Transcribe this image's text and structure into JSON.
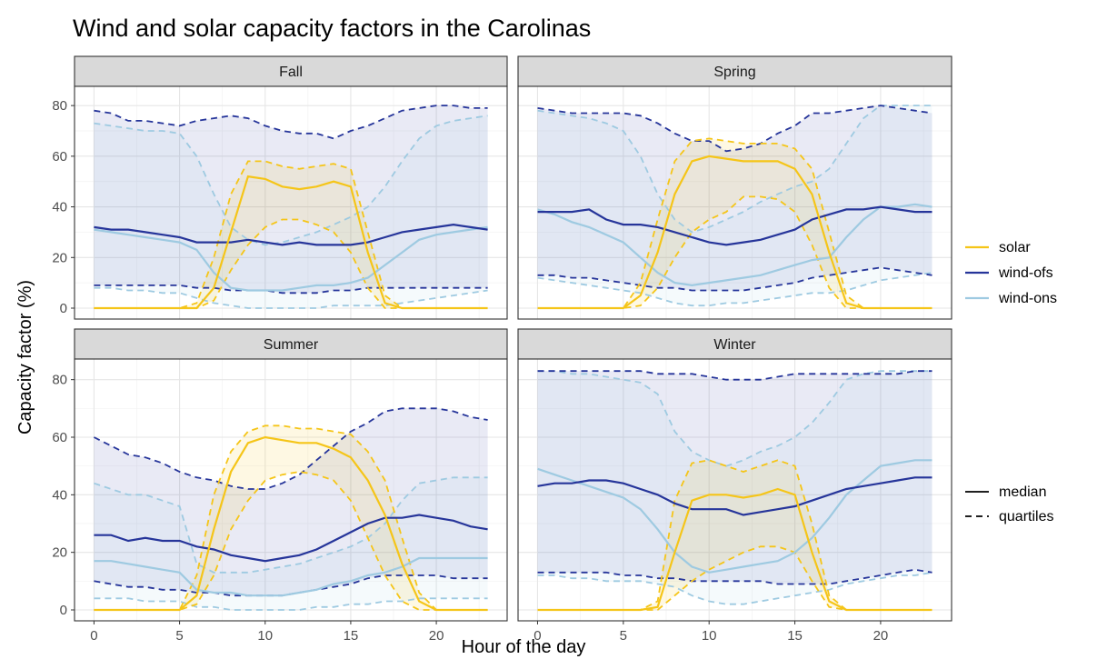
{
  "chart_data": {
    "type": "line",
    "title": "Wind and solar capacity factors in the Carolinas",
    "xlabel": "Hour of the day",
    "ylabel": "Capacity factor (%)",
    "xlim": [
      0,
      23
    ],
    "ylim": [
      0,
      84
    ],
    "x_ticks": [
      0,
      5,
      10,
      15,
      20
    ],
    "y_ticks": [
      0,
      20,
      40,
      60,
      80
    ],
    "grid": true,
    "legend_position": "right",
    "legend": {
      "colour": [
        {
          "label": "solar",
          "color": "#f5c518"
        },
        {
          "label": "wind-ofs",
          "color": "#26359a"
        },
        {
          "label": "wind-ons",
          "color": "#9ecae1"
        }
      ],
      "linetype": [
        {
          "label": "median",
          "style": "solid"
        },
        {
          "label": "quartiles",
          "style": "dashed"
        }
      ]
    },
    "x": [
      0,
      1,
      2,
      3,
      4,
      5,
      6,
      7,
      8,
      9,
      10,
      11,
      12,
      13,
      14,
      15,
      16,
      17,
      18,
      19,
      20,
      21,
      22,
      23
    ],
    "panels": [
      {
        "name": "Fall",
        "series": {
          "solar": {
            "median": [
              0,
              0,
              0,
              0,
              0,
              0,
              0,
              8,
              30,
              52,
              51,
              48,
              47,
              48,
              50,
              48,
              22,
              2,
              0,
              0,
              0,
              0,
              0,
              0
            ],
            "q1": [
              0,
              0,
              0,
              0,
              0,
              0,
              0,
              3,
              15,
              25,
              32,
              35,
              35,
              33,
              30,
              22,
              8,
              0,
              0,
              0,
              0,
              0,
              0,
              0
            ],
            "q3": [
              0,
              0,
              0,
              0,
              0,
              0,
              2,
              20,
              45,
              58,
              58,
              56,
              55,
              56,
              57,
              55,
              30,
              5,
              0,
              0,
              0,
              0,
              0,
              0
            ]
          },
          "wind-ofs": {
            "median": [
              32,
              31,
              31,
              30,
              29,
              28,
              26,
              26,
              26,
              27,
              26,
              25,
              26,
              25,
              25,
              25,
              26,
              28,
              30,
              31,
              32,
              33,
              32,
              31
            ],
            "q1": [
              9,
              9,
              9,
              9,
              9,
              9,
              8,
              8,
              7,
              7,
              7,
              6,
              6,
              6,
              7,
              7,
              8,
              8,
              8,
              8,
              8,
              8,
              8,
              8
            ],
            "q3": [
              78,
              77,
              74,
              74,
              73,
              72,
              74,
              75,
              76,
              75,
              72,
              70,
              69,
              69,
              67,
              70,
              72,
              75,
              78,
              79,
              80,
              80,
              79,
              79
            ]
          },
          "wind-ons": {
            "median": [
              31,
              30,
              29,
              28,
              27,
              26,
              23,
              14,
              8,
              7,
              7,
              7,
              8,
              9,
              9,
              10,
              12,
              17,
              22,
              27,
              29,
              30,
              31,
              32
            ],
            "q1": [
              8,
              8,
              7,
              7,
              6,
              6,
              4,
              2,
              1,
              0,
              0,
              0,
              0,
              0,
              1,
              1,
              1,
              1,
              2,
              3,
              4,
              5,
              6,
              7
            ],
            "q3": [
              73,
              72,
              71,
              70,
              70,
              69,
              60,
              45,
              32,
              27,
              25,
              26,
              28,
              30,
              33,
              36,
              40,
              48,
              58,
              67,
              72,
              74,
              75,
              76
            ]
          }
        }
      },
      {
        "name": "Spring",
        "series": {
          "solar": {
            "median": [
              0,
              0,
              0,
              0,
              0,
              0,
              5,
              22,
              45,
              58,
              60,
              59,
              58,
              58,
              58,
              55,
              45,
              22,
              2,
              0,
              0,
              0,
              0,
              0
            ],
            "q1": [
              0,
              0,
              0,
              0,
              0,
              0,
              1,
              8,
              20,
              30,
              35,
              38,
              44,
              44,
              43,
              38,
              25,
              8,
              0,
              0,
              0,
              0,
              0,
              0
            ],
            "q3": [
              0,
              0,
              0,
              0,
              0,
              0,
              10,
              35,
              58,
              66,
              67,
              66,
              65,
              65,
              65,
              63,
              55,
              30,
              5,
              0,
              0,
              0,
              0,
              0
            ]
          },
          "wind-ofs": {
            "median": [
              38,
              38,
              38,
              39,
              35,
              33,
              33,
              32,
              30,
              28,
              26,
              25,
              26,
              27,
              29,
              31,
              35,
              37,
              39,
              39,
              40,
              39,
              38,
              38
            ],
            "q1": [
              13,
              13,
              12,
              12,
              11,
              10,
              9,
              8,
              8,
              7,
              7,
              7,
              7,
              8,
              9,
              10,
              12,
              13,
              14,
              15,
              16,
              15,
              14,
              13
            ],
            "q3": [
              79,
              78,
              77,
              77,
              77,
              77,
              76,
              73,
              69,
              66,
              66,
              62,
              63,
              65,
              69,
              72,
              77,
              77,
              78,
              79,
              80,
              79,
              78,
              77
            ]
          },
          "wind-ons": {
            "median": [
              39,
              37,
              34,
              32,
              29,
              26,
              20,
              14,
              10,
              9,
              10,
              11,
              12,
              13,
              15,
              17,
              19,
              20,
              28,
              35,
              40,
              40,
              41,
              40
            ],
            "q1": [
              12,
              11,
              10,
              9,
              8,
              7,
              6,
              4,
              2,
              1,
              1,
              2,
              2,
              3,
              4,
              5,
              6,
              6,
              7,
              9,
              11,
              12,
              13,
              14
            ],
            "q3": [
              78,
              77,
              76,
              75,
              73,
              70,
              60,
              45,
              35,
              30,
              32,
              35,
              38,
              42,
              45,
              48,
              50,
              55,
              65,
              75,
              80,
              80,
              80,
              80
            ]
          }
        }
      },
      {
        "name": "Summer",
        "series": {
          "solar": {
            "median": [
              0,
              0,
              0,
              0,
              0,
              0,
              5,
              28,
              48,
              58,
              60,
              59,
              58,
              58,
              56,
              53,
              45,
              33,
              16,
              3,
              0,
              0,
              0,
              0
            ],
            "q1": [
              0,
              0,
              0,
              0,
              0,
              0,
              2,
              12,
              28,
              38,
              45,
              47,
              48,
              47,
              45,
              38,
              25,
              12,
              3,
              0,
              0,
              0,
              0,
              0
            ],
            "q3": [
              0,
              0,
              0,
              0,
              0,
              0,
              12,
              40,
              55,
              62,
              64,
              64,
              63,
              63,
              62,
              61,
              55,
              45,
              25,
              6,
              0,
              0,
              0,
              0
            ]
          },
          "wind-ofs": {
            "median": [
              26,
              26,
              24,
              25,
              24,
              24,
              22,
              21,
              19,
              18,
              17,
              18,
              19,
              21,
              24,
              27,
              30,
              32,
              32,
              33,
              32,
              31,
              29,
              28
            ],
            "q1": [
              10,
              9,
              8,
              8,
              7,
              7,
              6,
              6,
              5,
              5,
              5,
              5,
              6,
              7,
              8,
              9,
              11,
              12,
              12,
              12,
              12,
              11,
              11,
              11
            ],
            "q3": [
              60,
              57,
              54,
              53,
              51,
              48,
              46,
              45,
              43,
              42,
              42,
              44,
              47,
              52,
              57,
              62,
              65,
              69,
              70,
              70,
              70,
              69,
              67,
              66
            ]
          },
          "wind-ons": {
            "median": [
              17,
              17,
              16,
              15,
              14,
              13,
              7,
              6,
              6,
              5,
              5,
              5,
              6,
              7,
              9,
              10,
              12,
              13,
              15,
              18,
              18,
              18,
              18,
              18
            ],
            "q1": [
              4,
              4,
              4,
              3,
              3,
              3,
              1,
              1,
              0,
              0,
              0,
              0,
              0,
              1,
              1,
              2,
              2,
              3,
              3,
              4,
              4,
              4,
              4,
              4
            ],
            "q3": [
              44,
              42,
              40,
              40,
              38,
              36,
              16,
              13,
              13,
              13,
              14,
              15,
              16,
              18,
              20,
              22,
              25,
              30,
              38,
              44,
              45,
              46,
              46,
              46
            ]
          }
        }
      },
      {
        "name": "Winter",
        "series": {
          "solar": {
            "median": [
              0,
              0,
              0,
              0,
              0,
              0,
              0,
              1,
              20,
              38,
              40,
              40,
              39,
              40,
              42,
              40,
              20,
              3,
              0,
              0,
              0,
              0,
              0,
              0
            ],
            "q1": [
              0,
              0,
              0,
              0,
              0,
              0,
              0,
              0,
              5,
              10,
              14,
              17,
              20,
              22,
              22,
              20,
              10,
              1,
              0,
              0,
              0,
              0,
              0,
              0
            ],
            "q3": [
              0,
              0,
              0,
              0,
              0,
              0,
              0,
              3,
              38,
              51,
              52,
              50,
              48,
              50,
              52,
              50,
              30,
              5,
              0,
              0,
              0,
              0,
              0,
              0
            ]
          },
          "wind-ofs": {
            "median": [
              43,
              44,
              44,
              45,
              45,
              44,
              42,
              40,
              37,
              35,
              35,
              35,
              33,
              34,
              35,
              36,
              38,
              40,
              42,
              43,
              44,
              45,
              46,
              46
            ],
            "q1": [
              13,
              13,
              13,
              13,
              13,
              12,
              12,
              11,
              11,
              10,
              10,
              10,
              10,
              10,
              9,
              9,
              9,
              9,
              10,
              11,
              12,
              13,
              14,
              13
            ],
            "q3": [
              83,
              83,
              83,
              83,
              83,
              83,
              83,
              82,
              82,
              82,
              81,
              80,
              80,
              80,
              81,
              82,
              82,
              82,
              82,
              82,
              82,
              82,
              83,
              83
            ]
          },
          "wind-ons": {
            "median": [
              49,
              47,
              45,
              43,
              41,
              39,
              35,
              28,
              20,
              15,
              13,
              14,
              15,
              16,
              17,
              20,
              25,
              32,
              40,
              45,
              50,
              51,
              52,
              52
            ],
            "q1": [
              12,
              12,
              11,
              11,
              10,
              10,
              10,
              9,
              8,
              5,
              3,
              2,
              2,
              3,
              4,
              5,
              6,
              7,
              9,
              10,
              11,
              12,
              12,
              13
            ],
            "q3": [
              83,
              83,
              82,
              82,
              81,
              80,
              79,
              75,
              62,
              55,
              52,
              50,
              52,
              55,
              57,
              60,
              65,
              72,
              80,
              82,
              83,
              83,
              83,
              83
            ]
          }
        }
      }
    ],
    "colors": {
      "solar": "#f5c518",
      "wind-ofs": "#26359a",
      "wind-ons": "#9ecae1"
    }
  }
}
